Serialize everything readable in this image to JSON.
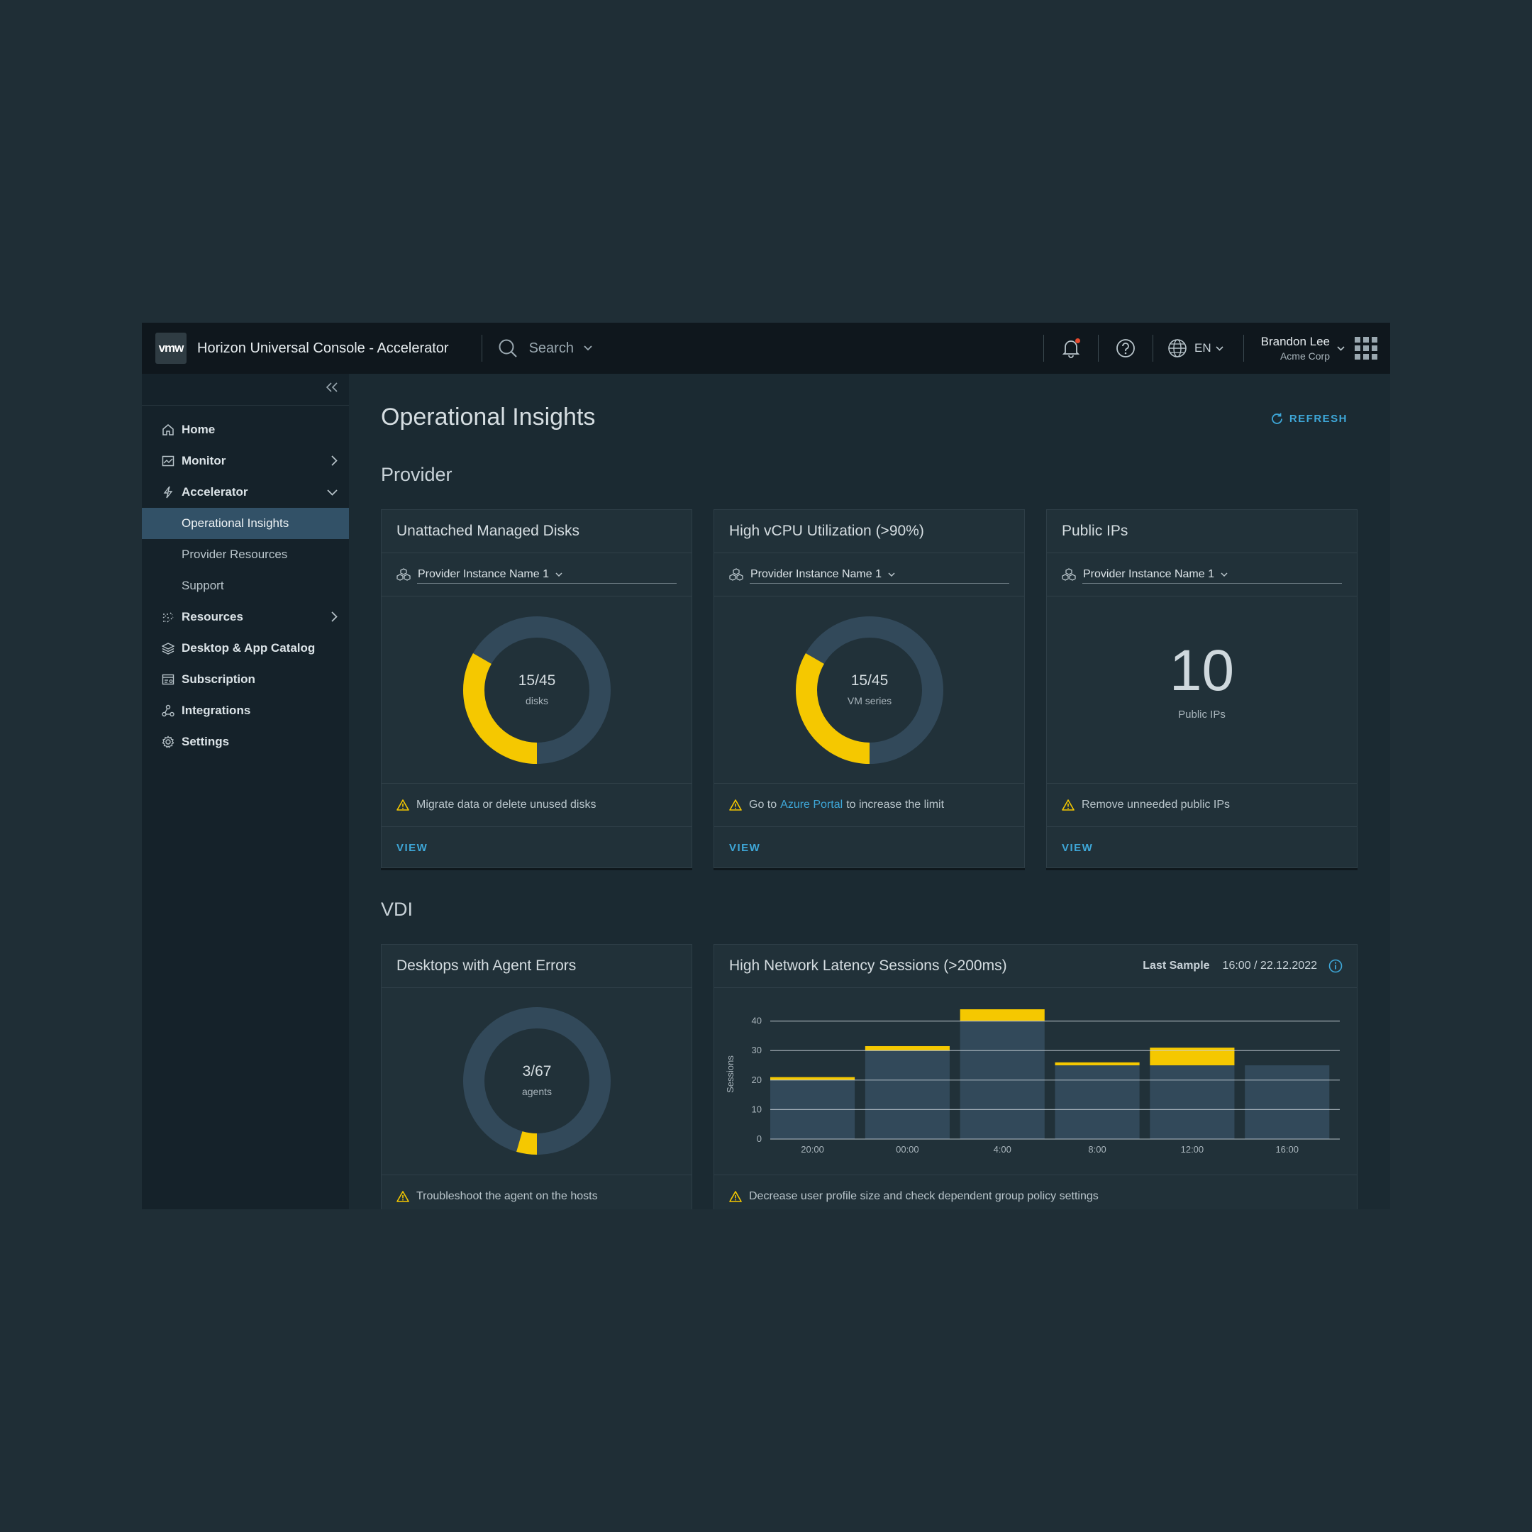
{
  "header": {
    "logo": "vmw",
    "app_title": "Horizon Universal Console - Accelerator",
    "search_placeholder": "Search",
    "language": "EN",
    "user_name": "Brandon Lee",
    "user_org": "Acme Corp"
  },
  "sidebar": {
    "items": [
      {
        "label": "Home",
        "icon": "home-icon"
      },
      {
        "label": "Monitor",
        "icon": "monitor-icon",
        "arrow": "chevron-right"
      },
      {
        "label": "Accelerator",
        "icon": "bolt-icon",
        "arrow": "chevron-down"
      },
      {
        "label": "Resources",
        "icon": "resources-icon",
        "arrow": "chevron-right"
      },
      {
        "label": "Desktop & App Catalog",
        "icon": "layers-icon"
      },
      {
        "label": "Subscription",
        "icon": "subscription-icon"
      },
      {
        "label": "Integrations",
        "icon": "integrations-icon"
      },
      {
        "label": "Settings",
        "icon": "gear-icon"
      }
    ],
    "subitems": [
      {
        "label": "Operational Insights",
        "active": true
      },
      {
        "label": "Provider Resources",
        "active": false
      },
      {
        "label": "Support",
        "active": false
      }
    ]
  },
  "main": {
    "title": "Operational Insights",
    "refresh_label": "REFRESH",
    "provider_section": "Provider",
    "vdi_section": "VDI"
  },
  "cards": {
    "disks": {
      "title": "Unattached Managed Disks",
      "select": "Provider Instance Name 1",
      "value_text": "15/45",
      "unit": "disks",
      "value": 15,
      "total": 45,
      "message": "Migrate data or delete unused disks",
      "action": "VIEW"
    },
    "vcpu": {
      "title": "High vCPU Utilization (>90%)",
      "select": "Provider Instance Name 1",
      "value_text": "15/45",
      "unit": "VM series",
      "value": 15,
      "total": 45,
      "message_pre": "Go to",
      "message_link": "Azure Portal",
      "message_post": "to increase the limit",
      "action": "VIEW"
    },
    "ips": {
      "title": "Public IPs",
      "select": "Provider Instance Name 1",
      "value": "10",
      "unit": "Public IPs",
      "message": "Remove unneeded public IPs",
      "action": "VIEW"
    },
    "agents": {
      "title": "Desktops with Agent Errors",
      "value_text": "3/67",
      "unit": "agents",
      "value": 3,
      "total": 67,
      "message": "Troubleshoot the agent on the hosts"
    },
    "latency": {
      "title": "High Network Latency Sessions (>200ms)",
      "last_sample_label": "Last Sample",
      "last_sample_value": "16:00 / 22.12.2022",
      "message": "Decrease user profile size and check dependent group policy settings"
    }
  },
  "chart_data": {
    "type": "bar",
    "stacked": true,
    "ylabel": "Sessions",
    "yticks": [
      0,
      10,
      20,
      30,
      40
    ],
    "ylim": [
      0,
      44
    ],
    "categories": [
      "20:00",
      "00:00",
      "4:00",
      "8:00",
      "12:00",
      "16:00"
    ],
    "series": [
      {
        "values": [
          20,
          30,
          40,
          25,
          25,
          25
        ],
        "color": "#32495a"
      },
      {
        "values": [
          1,
          1.5,
          4,
          1,
          6,
          0
        ],
        "color": "#f5c800"
      }
    ],
    "grid": true
  },
  "colors": {
    "accent": "#3ea7d8",
    "donut_track": "#32495a",
    "donut_fill": "#f5c800",
    "warning": "#f5c800"
  }
}
